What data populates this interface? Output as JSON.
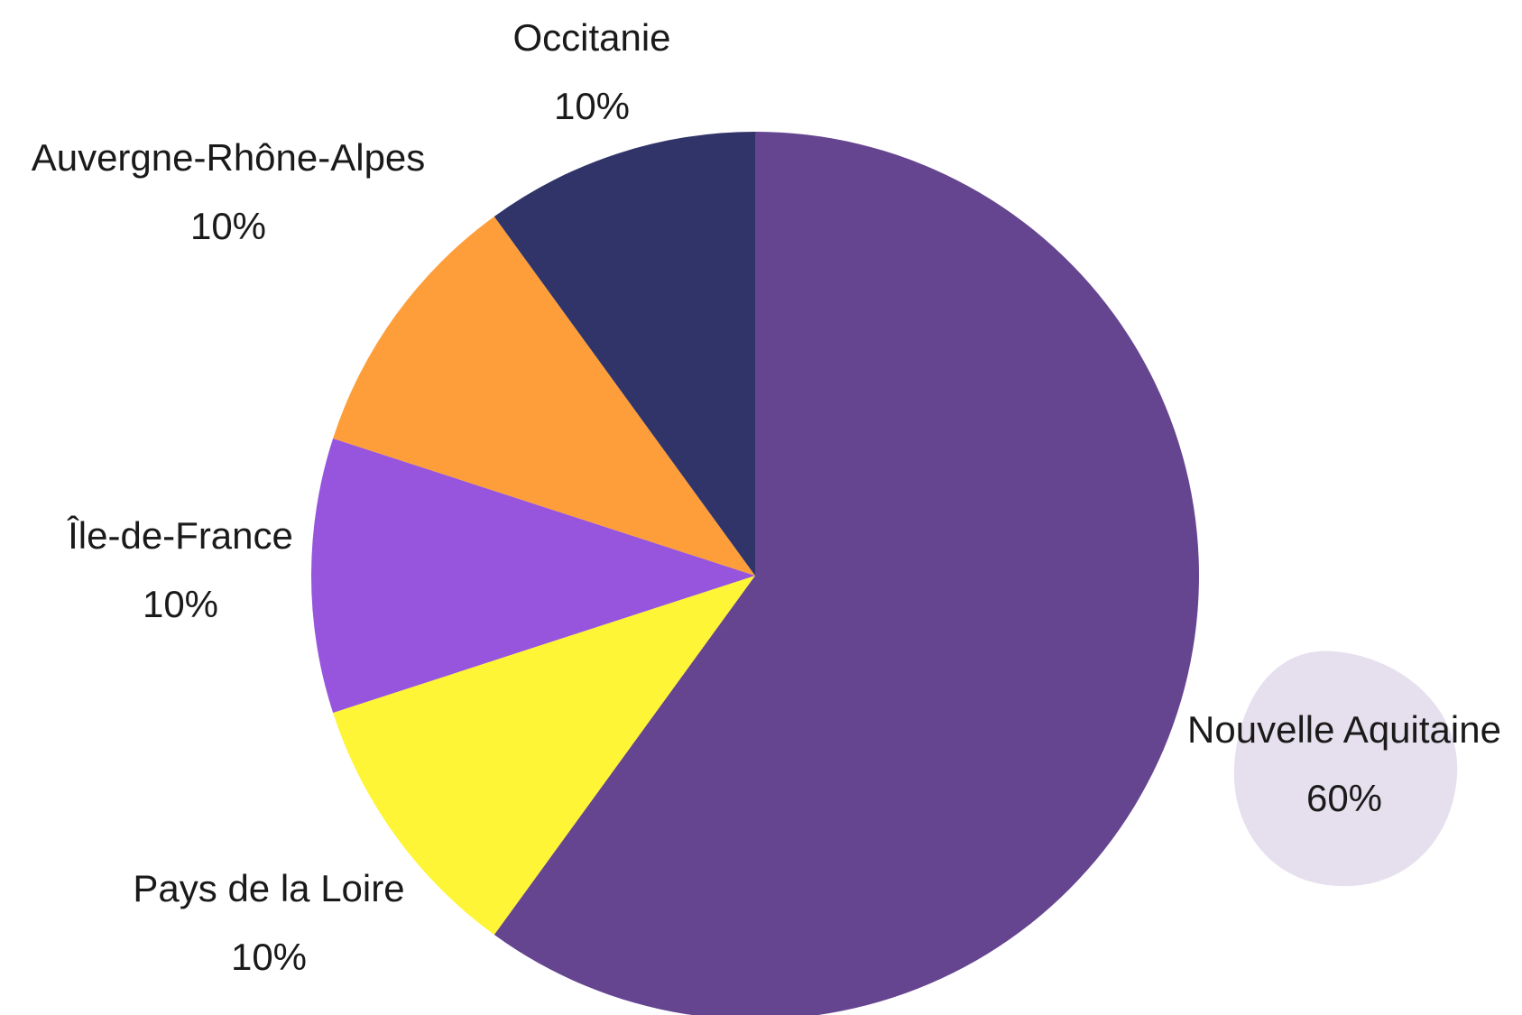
{
  "chart_data": {
    "type": "pie",
    "categories": [
      "Nouvelle Aquitaine",
      "Pays de la Loire",
      "Île-de-France",
      "Auvergne-Rhône-Alpes",
      "Occitanie"
    ],
    "values": [
      60,
      10,
      10,
      10,
      10
    ],
    "value_labels": [
      "60%",
      "10%",
      "10%",
      "10%",
      "10%"
    ],
    "colors": [
      "#654490",
      "#fdf535",
      "#9655dc",
      "#fd9e3a",
      "#303469"
    ]
  }
}
